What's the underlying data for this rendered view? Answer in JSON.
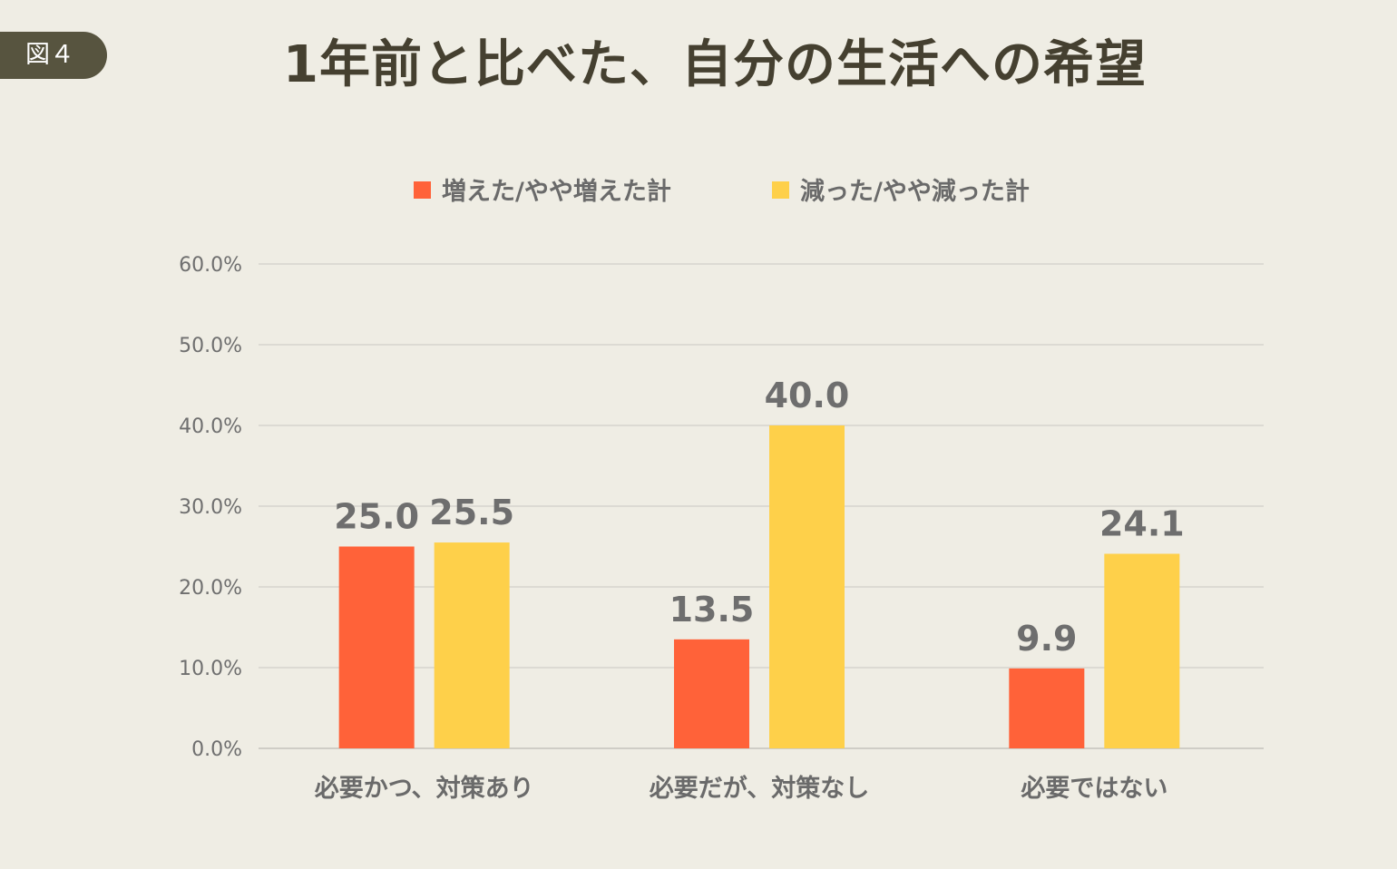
{
  "figure_label": "図４",
  "title": "1年前と比べた、自分の生活への希望",
  "colors": {
    "increase": "#ff6239",
    "decrease": "#fed04a"
  },
  "chart_data": {
    "type": "bar",
    "title": "1年前と比べた、自分の生活への希望",
    "categories": [
      "必要かつ、対策あり",
      "必要だが、対策なし",
      "必要ではない"
    ],
    "series": [
      {
        "name": "増えた/やや増えた計",
        "values": [
          25.0,
          13.5,
          9.9
        ]
      },
      {
        "name": "減った/やや減った計",
        "values": [
          25.5,
          40.0,
          24.1
        ]
      }
    ],
    "value_labels": [
      [
        "25.0",
        "13.5",
        "9.9"
      ],
      [
        "25.5",
        "40.0",
        "24.1"
      ]
    ],
    "yticks": [
      "0.0%",
      "10.0%",
      "20.0%",
      "30.0%",
      "40.0%",
      "50.0%",
      "60.0%"
    ],
    "ylim": [
      0,
      60
    ],
    "grid": true,
    "legend_position": "top-center",
    "xlabel": "",
    "ylabel": ""
  }
}
